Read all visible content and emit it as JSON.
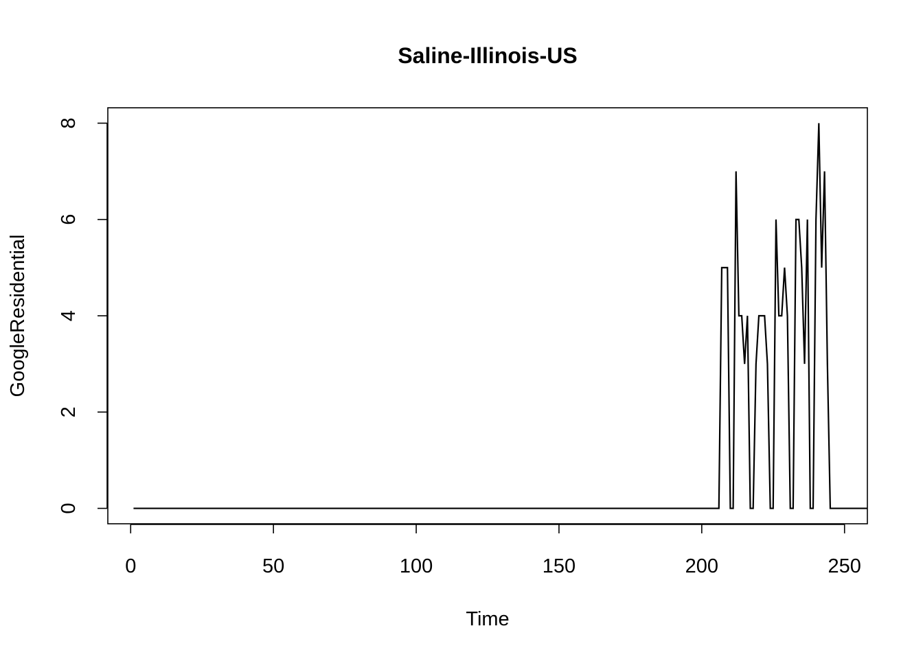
{
  "chart_data": {
    "type": "line",
    "title": "Saline-Illinois-US",
    "xlabel": "Time",
    "ylabel": "GoogleResidential",
    "xlim": [
      -8,
      258
    ],
    "ylim": [
      -0.32,
      8.32
    ],
    "xticks": [
      0,
      50,
      100,
      150,
      200,
      250
    ],
    "yticks": [
      0,
      2,
      4,
      6,
      8
    ],
    "x_tick_labels": [
      "0",
      "50",
      "100",
      "150",
      "200",
      "250"
    ],
    "y_tick_labels": [
      "0",
      "2",
      "4",
      "6",
      "8"
    ],
    "grid": false,
    "legend": "none",
    "series": [
      {
        "x_start": 1,
        "values": [
          0,
          0,
          0,
          0,
          0,
          0,
          0,
          0,
          0,
          0,
          0,
          0,
          0,
          0,
          0,
          0,
          0,
          0,
          0,
          0,
          0,
          0,
          0,
          0,
          0,
          0,
          0,
          0,
          0,
          0,
          0,
          0,
          0,
          0,
          0,
          0,
          0,
          0,
          0,
          0,
          0,
          0,
          0,
          0,
          0,
          0,
          0,
          0,
          0,
          0,
          0,
          0,
          0,
          0,
          0,
          0,
          0,
          0,
          0,
          0,
          0,
          0,
          0,
          0,
          0,
          0,
          0,
          0,
          0,
          0,
          0,
          0,
          0,
          0,
          0,
          0,
          0,
          0,
          0,
          0,
          0,
          0,
          0,
          0,
          0,
          0,
          0,
          0,
          0,
          0,
          0,
          0,
          0,
          0,
          0,
          0,
          0,
          0,
          0,
          0,
          0,
          0,
          0,
          0,
          0,
          0,
          0,
          0,
          0,
          0,
          0,
          0,
          0,
          0,
          0,
          0,
          0,
          0,
          0,
          0,
          0,
          0,
          0,
          0,
          0,
          0,
          0,
          0,
          0,
          0,
          0,
          0,
          0,
          0,
          0,
          0,
          0,
          0,
          0,
          0,
          0,
          0,
          0,
          0,
          0,
          0,
          0,
          0,
          0,
          0,
          0,
          0,
          0,
          0,
          0,
          0,
          0,
          0,
          0,
          0,
          0,
          0,
          0,
          0,
          0,
          0,
          0,
          0,
          0,
          0,
          0,
          0,
          0,
          0,
          0,
          0,
          0,
          0,
          0,
          0,
          0,
          0,
          0,
          0,
          0,
          0,
          0,
          0,
          0,
          0,
          0,
          0,
          0,
          0,
          0,
          0,
          0,
          0,
          0,
          0,
          0,
          0,
          0,
          0,
          0,
          0,
          5,
          5,
          5,
          0,
          0,
          7,
          4,
          4,
          3,
          4,
          0,
          0,
          3,
          4,
          4,
          4,
          3,
          0,
          0,
          6,
          4,
          4,
          5,
          4,
          0,
          0,
          6,
          6,
          5,
          3,
          6,
          0,
          0,
          6,
          8,
          5,
          7,
          3,
          0,
          0,
          0,
          0,
          0,
          0,
          0,
          0,
          0,
          0,
          0,
          0,
          0,
          0
        ]
      }
    ]
  }
}
